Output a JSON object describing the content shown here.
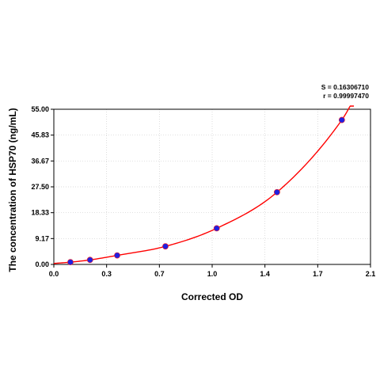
{
  "chart_data": {
    "type": "scatter",
    "xlabel": "Corrected OD",
    "ylabel": "The concentration of HSP70 (ng/mL)",
    "xlim": [
      0.0,
      2.1
    ],
    "ylim": [
      0.0,
      55.0
    ],
    "x_ticks": [
      "0.0",
      "0.3",
      "0.7",
      "1.0",
      "1.4",
      "1.7",
      "2.1"
    ],
    "y_ticks": [
      "0.00",
      "9.17",
      "18.33",
      "27.50",
      "36.67",
      "45.83",
      "55.00"
    ],
    "grid": true,
    "series": [
      {
        "marker_color": "#2020e0",
        "curve_color": "#ff0000",
        "x": [
          0.11,
          0.24,
          0.42,
          0.74,
          1.08,
          1.48,
          1.91
        ],
        "y": [
          0.8,
          1.6,
          3.2,
          6.4,
          12.8,
          25.6,
          51.2
        ]
      }
    ],
    "stats": {
      "s_text": "S = 0.16306710",
      "r_text": "r = 0.99997470"
    }
  }
}
